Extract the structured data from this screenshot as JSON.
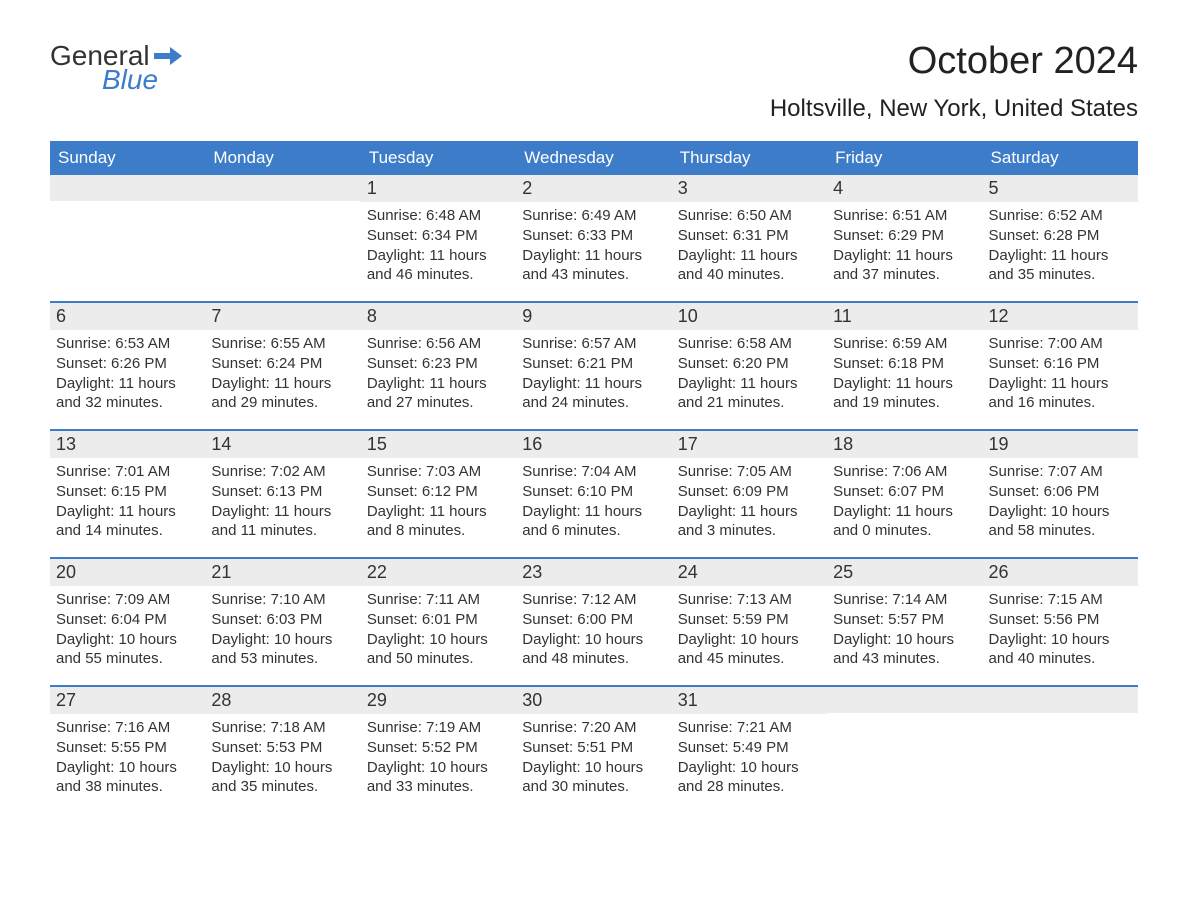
{
  "logo": {
    "word1": "General",
    "word2": "Blue",
    "flag_color": "#3d7cc9"
  },
  "title": "October 2024",
  "location": "Holtsville, New York, United States",
  "colors": {
    "header_bg": "#3d7cc9",
    "header_text": "#ffffff",
    "daynum_bg": "#ececec",
    "week_border": "#3d7cc9",
    "text": "#333333",
    "background": "#ffffff"
  },
  "day_headers": [
    "Sunday",
    "Monday",
    "Tuesday",
    "Wednesday",
    "Thursday",
    "Friday",
    "Saturday"
  ],
  "weeks": [
    [
      {
        "num": "",
        "lines": []
      },
      {
        "num": "",
        "lines": []
      },
      {
        "num": "1",
        "lines": [
          "Sunrise: 6:48 AM",
          "Sunset: 6:34 PM",
          "Daylight: 11 hours",
          "and 46 minutes."
        ]
      },
      {
        "num": "2",
        "lines": [
          "Sunrise: 6:49 AM",
          "Sunset: 6:33 PM",
          "Daylight: 11 hours",
          "and 43 minutes."
        ]
      },
      {
        "num": "3",
        "lines": [
          "Sunrise: 6:50 AM",
          "Sunset: 6:31 PM",
          "Daylight: 11 hours",
          "and 40 minutes."
        ]
      },
      {
        "num": "4",
        "lines": [
          "Sunrise: 6:51 AM",
          "Sunset: 6:29 PM",
          "Daylight: 11 hours",
          "and 37 minutes."
        ]
      },
      {
        "num": "5",
        "lines": [
          "Sunrise: 6:52 AM",
          "Sunset: 6:28 PM",
          "Daylight: 11 hours",
          "and 35 minutes."
        ]
      }
    ],
    [
      {
        "num": "6",
        "lines": [
          "Sunrise: 6:53 AM",
          "Sunset: 6:26 PM",
          "Daylight: 11 hours",
          "and 32 minutes."
        ]
      },
      {
        "num": "7",
        "lines": [
          "Sunrise: 6:55 AM",
          "Sunset: 6:24 PM",
          "Daylight: 11 hours",
          "and 29 minutes."
        ]
      },
      {
        "num": "8",
        "lines": [
          "Sunrise: 6:56 AM",
          "Sunset: 6:23 PM",
          "Daylight: 11 hours",
          "and 27 minutes."
        ]
      },
      {
        "num": "9",
        "lines": [
          "Sunrise: 6:57 AM",
          "Sunset: 6:21 PM",
          "Daylight: 11 hours",
          "and 24 minutes."
        ]
      },
      {
        "num": "10",
        "lines": [
          "Sunrise: 6:58 AM",
          "Sunset: 6:20 PM",
          "Daylight: 11 hours",
          "and 21 minutes."
        ]
      },
      {
        "num": "11",
        "lines": [
          "Sunrise: 6:59 AM",
          "Sunset: 6:18 PM",
          "Daylight: 11 hours",
          "and 19 minutes."
        ]
      },
      {
        "num": "12",
        "lines": [
          "Sunrise: 7:00 AM",
          "Sunset: 6:16 PM",
          "Daylight: 11 hours",
          "and 16 minutes."
        ]
      }
    ],
    [
      {
        "num": "13",
        "lines": [
          "Sunrise: 7:01 AM",
          "Sunset: 6:15 PM",
          "Daylight: 11 hours",
          "and 14 minutes."
        ]
      },
      {
        "num": "14",
        "lines": [
          "Sunrise: 7:02 AM",
          "Sunset: 6:13 PM",
          "Daylight: 11 hours",
          "and 11 minutes."
        ]
      },
      {
        "num": "15",
        "lines": [
          "Sunrise: 7:03 AM",
          "Sunset: 6:12 PM",
          "Daylight: 11 hours",
          "and 8 minutes."
        ]
      },
      {
        "num": "16",
        "lines": [
          "Sunrise: 7:04 AM",
          "Sunset: 6:10 PM",
          "Daylight: 11 hours",
          "and 6 minutes."
        ]
      },
      {
        "num": "17",
        "lines": [
          "Sunrise: 7:05 AM",
          "Sunset: 6:09 PM",
          "Daylight: 11 hours",
          "and 3 minutes."
        ]
      },
      {
        "num": "18",
        "lines": [
          "Sunrise: 7:06 AM",
          "Sunset: 6:07 PM",
          "Daylight: 11 hours",
          "and 0 minutes."
        ]
      },
      {
        "num": "19",
        "lines": [
          "Sunrise: 7:07 AM",
          "Sunset: 6:06 PM",
          "Daylight: 10 hours",
          "and 58 minutes."
        ]
      }
    ],
    [
      {
        "num": "20",
        "lines": [
          "Sunrise: 7:09 AM",
          "Sunset: 6:04 PM",
          "Daylight: 10 hours",
          "and 55 minutes."
        ]
      },
      {
        "num": "21",
        "lines": [
          "Sunrise: 7:10 AM",
          "Sunset: 6:03 PM",
          "Daylight: 10 hours",
          "and 53 minutes."
        ]
      },
      {
        "num": "22",
        "lines": [
          "Sunrise: 7:11 AM",
          "Sunset: 6:01 PM",
          "Daylight: 10 hours",
          "and 50 minutes."
        ]
      },
      {
        "num": "23",
        "lines": [
          "Sunrise: 7:12 AM",
          "Sunset: 6:00 PM",
          "Daylight: 10 hours",
          "and 48 minutes."
        ]
      },
      {
        "num": "24",
        "lines": [
          "Sunrise: 7:13 AM",
          "Sunset: 5:59 PM",
          "Daylight: 10 hours",
          "and 45 minutes."
        ]
      },
      {
        "num": "25",
        "lines": [
          "Sunrise: 7:14 AM",
          "Sunset: 5:57 PM",
          "Daylight: 10 hours",
          "and 43 minutes."
        ]
      },
      {
        "num": "26",
        "lines": [
          "Sunrise: 7:15 AM",
          "Sunset: 5:56 PM",
          "Daylight: 10 hours",
          "and 40 minutes."
        ]
      }
    ],
    [
      {
        "num": "27",
        "lines": [
          "Sunrise: 7:16 AM",
          "Sunset: 5:55 PM",
          "Daylight: 10 hours",
          "and 38 minutes."
        ]
      },
      {
        "num": "28",
        "lines": [
          "Sunrise: 7:18 AM",
          "Sunset: 5:53 PM",
          "Daylight: 10 hours",
          "and 35 minutes."
        ]
      },
      {
        "num": "29",
        "lines": [
          "Sunrise: 7:19 AM",
          "Sunset: 5:52 PM",
          "Daylight: 10 hours",
          "and 33 minutes."
        ]
      },
      {
        "num": "30",
        "lines": [
          "Sunrise: 7:20 AM",
          "Sunset: 5:51 PM",
          "Daylight: 10 hours",
          "and 30 minutes."
        ]
      },
      {
        "num": "31",
        "lines": [
          "Sunrise: 7:21 AM",
          "Sunset: 5:49 PM",
          "Daylight: 10 hours",
          "and 28 minutes."
        ]
      },
      {
        "num": "",
        "lines": []
      },
      {
        "num": "",
        "lines": []
      }
    ]
  ]
}
